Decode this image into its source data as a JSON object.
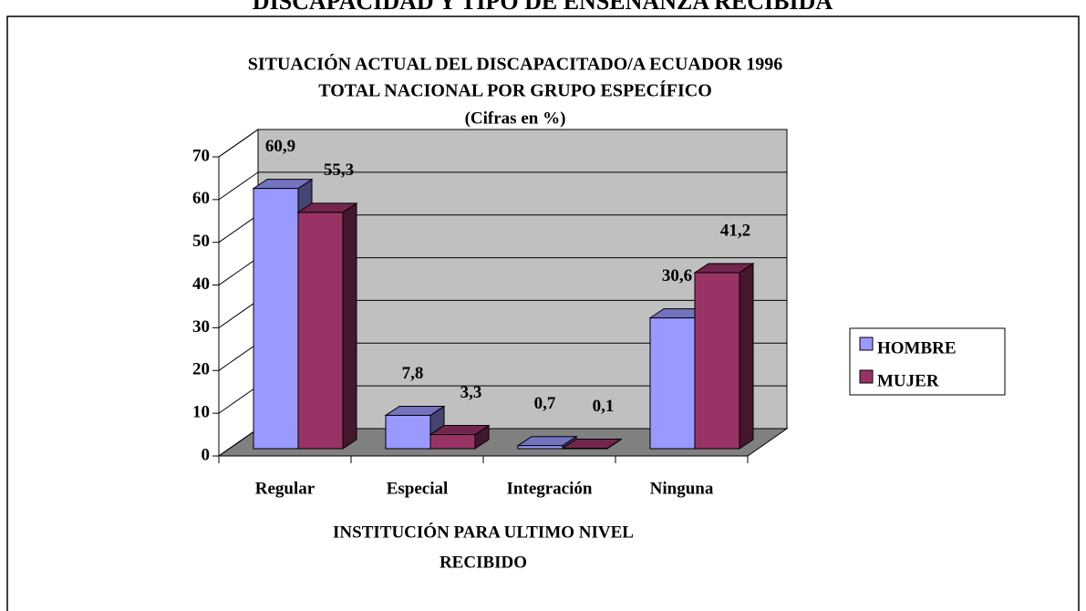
{
  "heading": "DISCAPACIDAD Y TIPO DE ENSEÑANZA RECIBIDA",
  "chart_data": {
    "type": "bar3d",
    "title": [
      "SITUACIÓN ACTUAL DEL DISCAPACITADO/A ECUADOR 1996",
      "TOTAL NACIONAL POR GRUPO ESPECÍFICO"
    ],
    "subtitle": "(Cifras en %)",
    "xlabel": [
      "INSTITUCIÓN PARA ULTIMO NIVEL",
      "RECIBIDO"
    ],
    "categories": [
      "Regular",
      "Especial",
      "Integración",
      "Ninguna"
    ],
    "series": [
      {
        "name": "HOMBRE",
        "color": "#9999ff",
        "values": [
          60.9,
          7.8,
          0.7,
          30.6
        ],
        "value_labels": [
          "60,9",
          "7,8",
          "0,7",
          "30,6"
        ]
      },
      {
        "name": "MUJER",
        "color": "#993366",
        "values": [
          55.3,
          3.3,
          0.1,
          41.2
        ],
        "value_labels": [
          "55,3",
          "3,3",
          "0,1",
          "41,2"
        ]
      }
    ],
    "ylim": [
      0,
      70
    ],
    "yticks": [
      0,
      10,
      20,
      30,
      40,
      50,
      60,
      70
    ],
    "grid": true,
    "legend": "right"
  }
}
